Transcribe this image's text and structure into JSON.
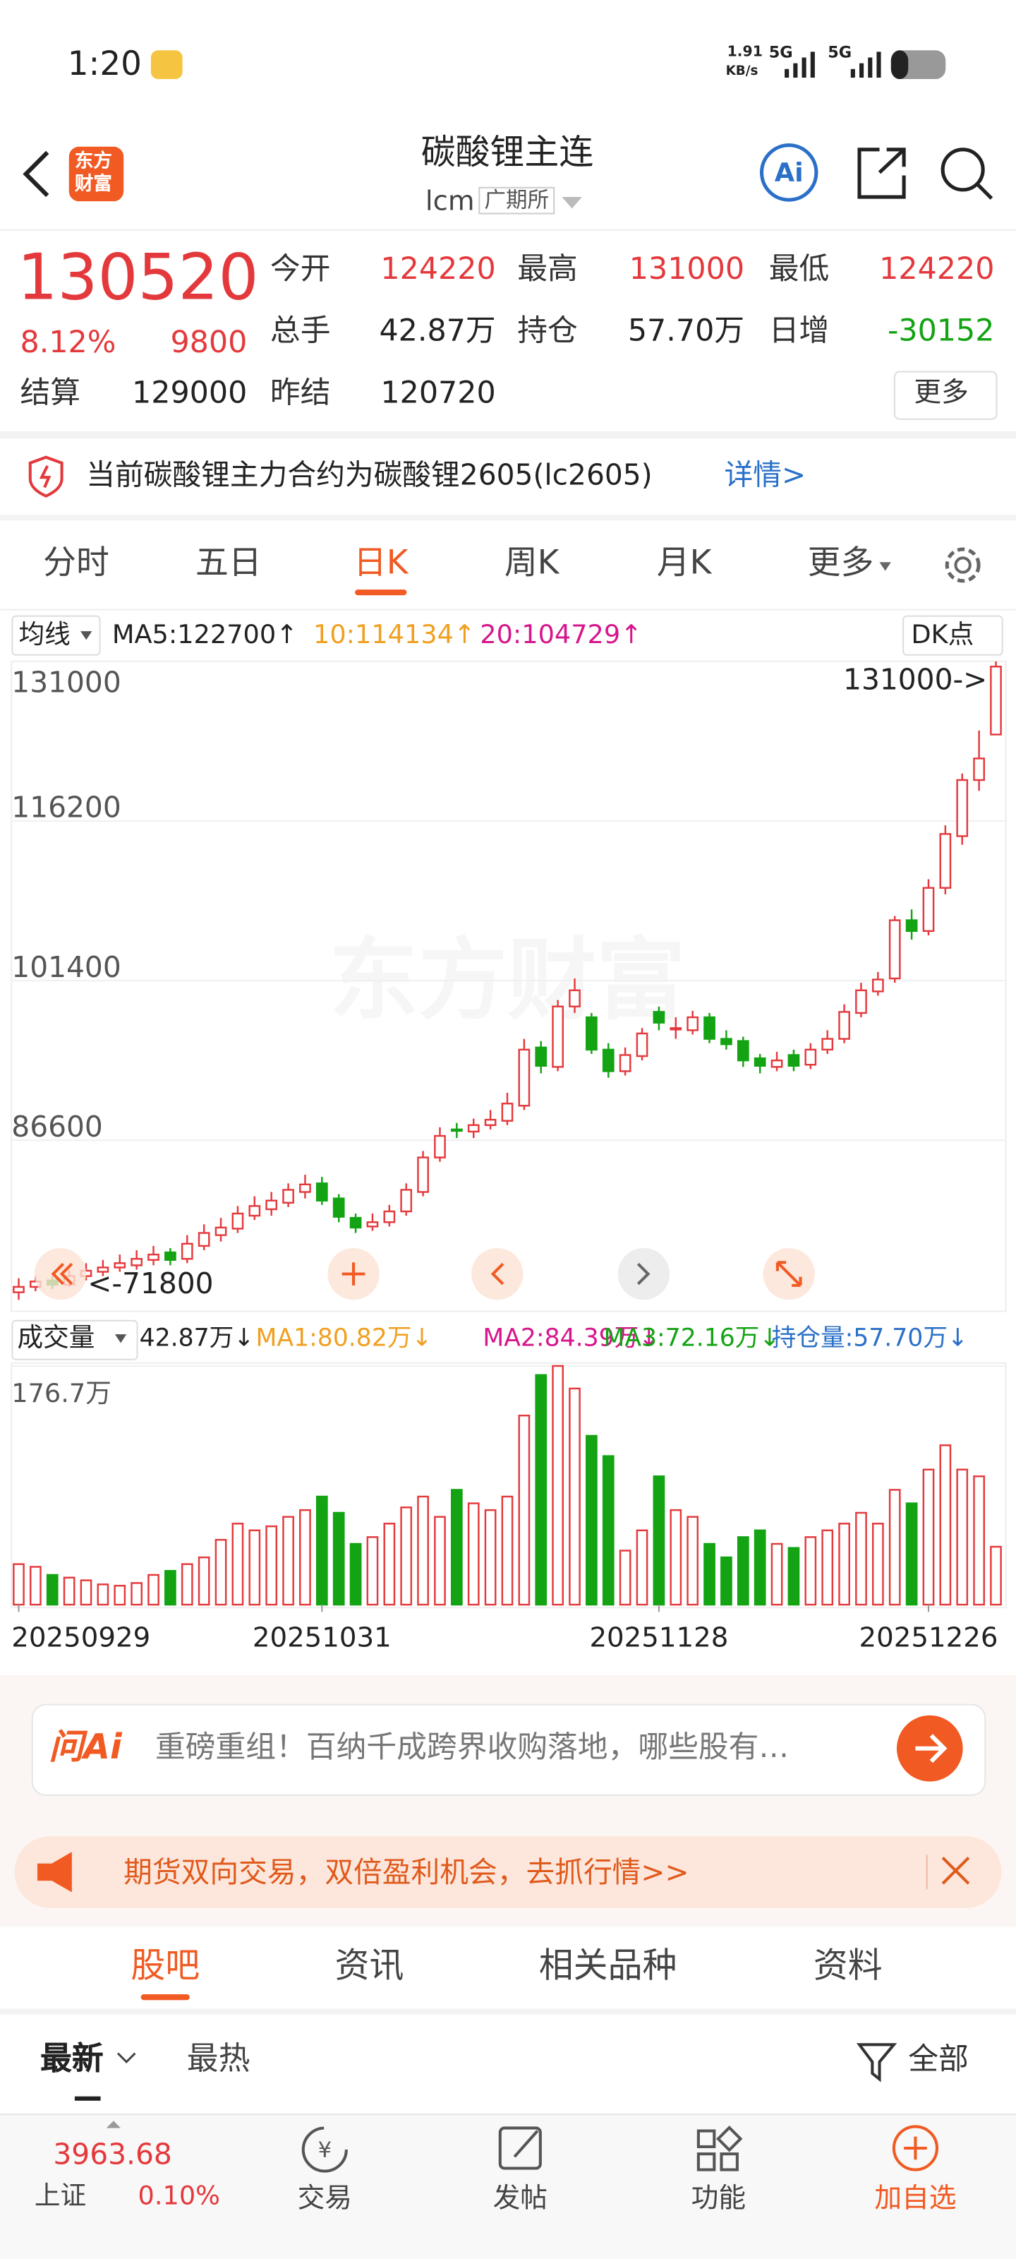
{
  "status": {
    "time": "1:20",
    "net_speed": "1.91",
    "net_unit": "KB/s",
    "sim1": "5G",
    "sim2": "5G",
    "battery": "26"
  },
  "header": {
    "logo_top": "东方",
    "logo_bottom": "财富",
    "title": "碳酸锂主连",
    "code": "lcm",
    "exchange": "广期所"
  },
  "quote": {
    "price": 130520,
    "change_pct": "8.12%",
    "change": 9800,
    "more": "更多",
    "fields": [
      {
        "label": "今开",
        "value": 124220,
        "color": "#e4393c"
      },
      {
        "label": "最高",
        "value": 131000,
        "color": "#e4393c"
      },
      {
        "label": "最低",
        "value": 124220,
        "color": "#e4393c"
      },
      {
        "label": "总手",
        "value": "42.87万",
        "color": "#222222"
      },
      {
        "label": "持仓",
        "value": "57.70万",
        "color": "#222222"
      },
      {
        "label": "日增",
        "value": -30152,
        "color": "#13a313"
      },
      {
        "label": "结算",
        "value": 129000,
        "color": "#222222"
      },
      {
        "label": "昨结",
        "value": 120720,
        "color": "#222222"
      }
    ]
  },
  "notice": {
    "text": "当前碳酸锂主力合约为碳酸锂2605(lc2605)",
    "link": "详情>"
  },
  "tabs": {
    "items": [
      "分时",
      "五日",
      "日K",
      "周K",
      "月K",
      "更多"
    ],
    "active": 2
  },
  "chart_data": [
    {
      "type": "candlestick",
      "indicator": "均线",
      "signal": "DK点",
      "watermark": "东方财富",
      "ma_legend": [
        {
          "text": "MA5:122700↑",
          "color": "#222222"
        },
        {
          "text": "10:114134↑",
          "color": "#f0a020"
        },
        {
          "text": "20:104729↑",
          "color": "#d6168c"
        }
      ],
      "up_color": "#e4393c",
      "down_color": "#13a313",
      "open": [
        72500,
        73000,
        73600,
        73200,
        74000,
        74400,
        74800,
        75000,
        75500,
        76200,
        75600,
        76800,
        77800,
        78400,
        79600,
        80200,
        80800,
        81800,
        82600,
        81200,
        79400,
        78600,
        79000,
        80000,
        81800,
        85000,
        87600,
        87400,
        88000,
        88400,
        89800,
        95200,
        93400,
        99000,
        98000,
        95000,
        93000,
        94400,
        98500,
        97000,
        96800,
        98000,
        96000,
        95800,
        94200,
        93400,
        94500,
        93600,
        95000,
        96000,
        98400,
        100400,
        101600,
        107000,
        106000,
        110000,
        114800,
        120000,
        124220
      ],
      "high": [
        73800,
        74000,
        74000,
        74600,
        75200,
        75500,
        76000,
        76400,
        76800,
        76600,
        77800,
        78800,
        79400,
        80500,
        81400,
        81800,
        82600,
        83400,
        83200,
        81600,
        79800,
        79800,
        80600,
        82600,
        85600,
        87800,
        88200,
        88600,
        89400,
        91000,
        96000,
        95800,
        99600,
        101600,
        98400,
        95600,
        95200,
        97000,
        99000,
        98000,
        98600,
        98400,
        96800,
        96200,
        94600,
        94800,
        95000,
        95600,
        96800,
        99200,
        101200,
        102200,
        107400,
        108000,
        110800,
        115800,
        120600,
        124600,
        131000
      ],
      "low": [
        71800,
        72600,
        72800,
        73000,
        73600,
        74000,
        74400,
        74600,
        75000,
        75000,
        75200,
        76400,
        77200,
        78000,
        79200,
        79600,
        80400,
        81200,
        80600,
        79000,
        78000,
        78200,
        78600,
        79600,
        81400,
        84600,
        86800,
        86800,
        87600,
        88000,
        89400,
        92800,
        93000,
        98400,
        94600,
        92400,
        92600,
        94000,
        96800,
        96000,
        96400,
        95600,
        95000,
        93400,
        92800,
        93000,
        93000,
        93200,
        94600,
        95600,
        98000,
        100000,
        101200,
        105200,
        105600,
        109400,
        114000,
        119000,
        124220
      ],
      "close": [
        73000,
        73500,
        73200,
        74000,
        74500,
        74800,
        75200,
        75600,
        76000,
        75500,
        77000,
        78000,
        78500,
        79800,
        80500,
        81000,
        82000,
        82500,
        81000,
        79500,
        78500,
        79000,
        80000,
        82000,
        85000,
        87000,
        87500,
        88000,
        88500,
        90000,
        95000,
        93500,
        99000,
        100500,
        95000,
        93000,
        94500,
        96500,
        97500,
        97000,
        98000,
        96000,
        95500,
        94000,
        93500,
        94000,
        93500,
        95000,
        96000,
        98500,
        100500,
        101500,
        107000,
        106000,
        110000,
        115000,
        120000,
        122000,
        130520
      ],
      "ylim": [
        71800,
        131000
      ],
      "yticks": [
        86600,
        101400,
        116200,
        131000
      ],
      "grid": true,
      "max_label": "131000->",
      "min_label": "<-71800"
    },
    {
      "type": "volume",
      "title": "成交量",
      "legend": [
        {
          "text": "42.87万↓",
          "color": "#222222"
        },
        {
          "text": "MA1:80.82万↓",
          "color": "#f0a020"
        },
        {
          "text": "MA2:84.39万↓",
          "color": "#d6168c"
        },
        {
          "text": "MA3:72.16万↓",
          "color": "#13a313"
        },
        {
          "text": "持仓量:57.70万↓",
          "color": "#2a70c8"
        }
      ],
      "categories": [
        "20250929",
        null,
        null,
        null,
        null,
        null,
        null,
        null,
        null,
        null,
        null,
        null,
        null,
        null,
        null,
        null,
        null,
        null,
        "20251031",
        null,
        null,
        null,
        null,
        null,
        null,
        null,
        null,
        null,
        null,
        null,
        null,
        null,
        null,
        null,
        null,
        null,
        null,
        null,
        "20251128",
        null,
        null,
        null,
        null,
        null,
        null,
        null,
        null,
        null,
        null,
        null,
        null,
        null,
        null,
        null,
        "20251226",
        null,
        null,
        null,
        null
      ],
      "values": [
        30,
        28,
        22,
        20,
        18,
        15,
        14,
        16,
        22,
        25,
        30,
        35,
        48,
        60,
        55,
        58,
        65,
        70,
        80,
        68,
        45,
        50,
        60,
        72,
        80,
        65,
        85,
        75,
        70,
        80,
        140,
        170,
        176.7,
        160,
        125,
        110,
        40,
        55,
        95,
        70,
        65,
        45,
        35,
        50,
        55,
        45,
        42,
        50,
        55,
        60,
        68,
        60,
        85,
        75,
        100,
        118,
        100,
        95,
        42.87
      ],
      "ylim": [
        0,
        176.7
      ],
      "yticks": [
        {
          "value": 176.7,
          "label": "176.7万"
        }
      ]
    }
  ],
  "ai": {
    "brand": "问Ai",
    "prompt": "重磅重组！百纳千成跨界收购落地，哪些股有…"
  },
  "banner": {
    "text": "期货双向交易，双倍盈利机会，去抓行情>>"
  },
  "subtabs": {
    "items": [
      "股吧",
      "资讯",
      "相关品种",
      "资料"
    ],
    "active": 0
  },
  "filters": {
    "latest": "最新",
    "hot": "最热",
    "all": "全部"
  },
  "bottom": {
    "index_value": "3963.68",
    "index_name": "上证",
    "index_change": "0.10%",
    "nav": [
      "交易",
      "发帖",
      "功能",
      "加自选"
    ]
  }
}
